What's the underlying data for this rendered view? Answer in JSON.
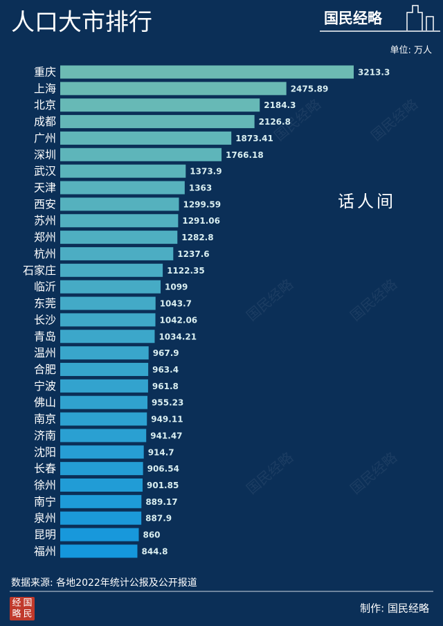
{
  "chart_data": {
    "type": "hbar",
    "title": "人口大市排行",
    "brand": "国民经略",
    "unit_note": "单位: 万人",
    "annotation": "话人间",
    "categories": [
      "重庆",
      "上海",
      "北京",
      "成都",
      "广州",
      "深圳",
      "武汉",
      "天津",
      "西安",
      "苏州",
      "郑州",
      "杭州",
      "石家庄",
      "临沂",
      "东莞",
      "长沙",
      "青岛",
      "温州",
      "合肥",
      "宁波",
      "佛山",
      "南京",
      "济南",
      "沈阳",
      "长春",
      "徐州",
      "南宁",
      "泉州",
      "昆明",
      "福州"
    ],
    "values": [
      3213.3,
      2475.89,
      2184.3,
      2126.8,
      1873.41,
      1766.18,
      1373.9,
      1363,
      1299.59,
      1291.06,
      1282.8,
      1237.6,
      1122.35,
      1099,
      1043.7,
      1042.06,
      1034.21,
      967.9,
      963.4,
      961.8,
      955.23,
      949.11,
      941.47,
      914.7,
      906.54,
      901.85,
      889.17,
      887.9,
      860,
      844.8
    ],
    "colors": [
      "#6dbbb3",
      "#1597dc"
    ],
    "source": "数据来源: 各地2022年统计公报及公开报道",
    "credit": "制作: 国民经略",
    "seal": [
      "经",
      "国",
      "略",
      "民"
    ]
  }
}
